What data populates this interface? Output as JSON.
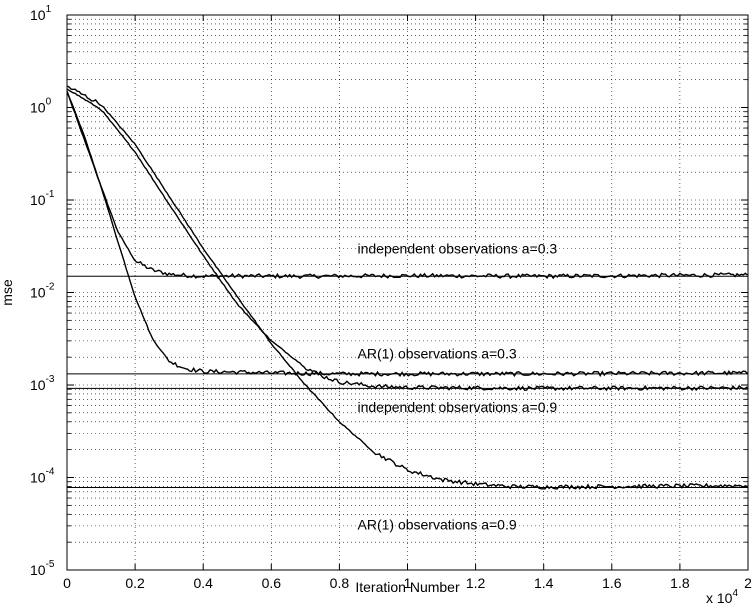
{
  "chart_data": {
    "type": "line",
    "title": "",
    "xlabel": "Iteration Number",
    "ylabel": "mse",
    "x_multiplier_base": "x 10",
    "x_multiplier_exp": "4",
    "xlim": [
      0,
      20000
    ],
    "ylim": [
      1e-05,
      10
    ],
    "yscale": "log",
    "grid": true,
    "x_ticks": [
      0,
      2000,
      4000,
      6000,
      8000,
      10000,
      12000,
      14000,
      16000,
      18000,
      20000
    ],
    "x_tick_labels": [
      "0",
      "0.2",
      "0.4",
      "0.6",
      "0.8",
      "1",
      "1.2",
      "1.4",
      "1.6",
      "1.8",
      "2"
    ],
    "y_ticks": [
      1e-05,
      0.0001,
      0.001,
      0.01,
      0.1,
      1,
      10
    ],
    "y_tick_labels": [
      {
        "base": "10",
        "exp": "-5"
      },
      {
        "base": "10",
        "exp": "-4"
      },
      {
        "base": "10",
        "exp": "-3"
      },
      {
        "base": "10",
        "exp": "-2"
      },
      {
        "base": "10",
        "exp": "-1"
      },
      {
        "base": "10",
        "exp": "0"
      },
      {
        "base": "10",
        "exp": "1"
      }
    ],
    "reference_lines": [
      0.015,
      0.00132,
      0.00092,
      7.8e-05
    ],
    "series": [
      {
        "x": [
          0,
          500,
          1000,
          1500,
          2000,
          2500,
          3000,
          3500,
          4000,
          5000,
          7000,
          10000,
          14000,
          20000
        ],
        "values": [
          1.5,
          0.5,
          0.14,
          0.045,
          0.022,
          0.0175,
          0.0158,
          0.0153,
          0.015,
          0.0151,
          0.015,
          0.0152,
          0.015,
          0.0155
        ]
      },
      {
        "x": [
          0,
          1000,
          1500,
          2000,
          2500,
          3000,
          3500,
          4000,
          5000,
          6000,
          8000,
          10000,
          14000,
          20000
        ],
        "values": [
          1.5,
          0.14,
          0.035,
          0.009,
          0.0032,
          0.0018,
          0.0015,
          0.0014,
          0.00138,
          0.00135,
          0.00132,
          0.00132,
          0.00132,
          0.00135
        ]
      },
      {
        "x": [
          0,
          1000,
          2000,
          3000,
          4000,
          5000,
          6000,
          7000,
          7500,
          8000,
          9000,
          10000,
          14000,
          20000
        ],
        "values": [
          1.6,
          0.95,
          0.33,
          0.09,
          0.025,
          0.0075,
          0.003,
          0.00155,
          0.00125,
          0.00108,
          0.00097,
          0.00094,
          0.00092,
          0.00093
        ]
      },
      {
        "x": [
          0,
          1000,
          2000,
          3000,
          4000,
          5000,
          6000,
          7000,
          8000,
          9000,
          10000,
          11000,
          12000,
          13000,
          14000,
          20000
        ],
        "values": [
          1.7,
          1.08,
          0.4,
          0.11,
          0.03,
          0.009,
          0.0028,
          0.001,
          0.0004,
          0.00019,
          0.00012,
          9.5e-05,
          8.5e-05,
          8e-05,
          7.9e-05,
          8.2e-05
        ]
      }
    ],
    "annotations": [
      {
        "text": "independent observations a=0.3",
        "x": 10000,
        "y": 0.03
      },
      {
        "text": "AR(1) observations a=0.3",
        "x": 10000,
        "y": 0.0022
      },
      {
        "text": "independent observations a=0.9",
        "x": 10000,
        "y": 0.00058
      },
      {
        "text": "AR(1) observations a=0.9",
        "x": 10000,
        "y": 3.1e-05
      }
    ]
  }
}
